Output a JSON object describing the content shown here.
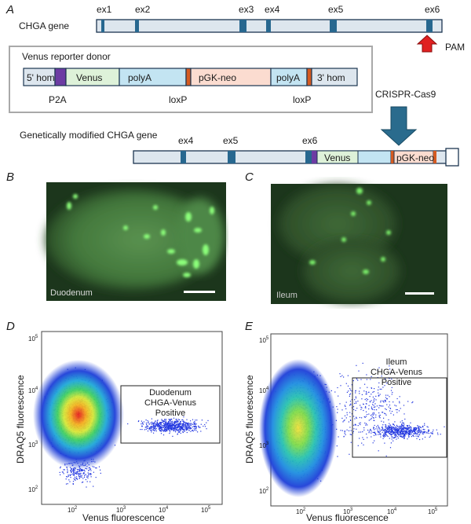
{
  "colors": {
    "gene_fill": "#dde6ee",
    "gene_stroke": "#1c3550",
    "exon": "#27678f",
    "p2a": "#6d3ca3",
    "loxp": "#d45a21",
    "venus": "#def2d9",
    "polya": "#c3e4f2",
    "pgk": "#fbdcd0",
    "arrow": "#2a6b8d",
    "pam_arrow": "#e02020",
    "micro_bg": "#1c361c"
  },
  "panel_a": {
    "letter": "A",
    "gene_label": "CHGA gene",
    "exons": [
      "ex1",
      "ex2",
      "ex3",
      "ex4",
      "ex5",
      "ex6"
    ],
    "pam": "PAM",
    "donor_title": "Venus reporter donor",
    "donor_segments": [
      "5' hom",
      "Venus",
      "polyA",
      "pGK-neo",
      "polyA",
      "3' hom"
    ],
    "donor_below": [
      "P2A",
      "loxP",
      "loxP"
    ],
    "crispr": "CRISPR-Cas9",
    "modified_label": "Genetically modified CHGA gene",
    "modified_exons": [
      "ex4",
      "ex5",
      "ex6"
    ],
    "modified_segments": [
      "Venus",
      "pGK-neo"
    ]
  },
  "panel_b": {
    "letter": "B",
    "tissue": "Duodenum"
  },
  "panel_c": {
    "letter": "C",
    "tissue": "Ileum"
  },
  "panel_d": {
    "letter": "D",
    "gate_lines": [
      "Duodenum",
      "CHGA-Venus",
      "Positive"
    ],
    "xlabel": "Venus fluorescence",
    "ylabel": "DRAQ5 fluorescence",
    "xticks": [
      {
        "b": "10",
        "e": "2"
      },
      {
        "b": "10",
        "e": "3"
      },
      {
        "b": "10",
        "e": "4"
      },
      {
        "b": "10",
        "e": "5"
      }
    ],
    "yticks": [
      {
        "b": "10",
        "e": "2"
      },
      {
        "b": "10",
        "e": "3"
      },
      {
        "b": "10",
        "e": "4"
      },
      {
        "b": "10",
        "e": "5"
      }
    ]
  },
  "panel_e": {
    "letter": "E",
    "gate_lines": [
      "Ileum",
      "CHGA-Venus",
      "Positive"
    ],
    "xlabel": "Venus fluorescence",
    "ylabel": "DRAQ5 fluorescence",
    "xticks": [
      {
        "b": "10",
        "e": "2"
      },
      {
        "b": "10",
        "e": "3"
      },
      {
        "b": "10",
        "e": "4"
      },
      {
        "b": "10",
        "e": "5"
      }
    ],
    "yticks": [
      {
        "b": "10",
        "e": "2"
      },
      {
        "b": "10",
        "e": "3"
      },
      {
        "b": "10",
        "e": "4"
      },
      {
        "b": "10",
        "e": "5"
      }
    ]
  }
}
